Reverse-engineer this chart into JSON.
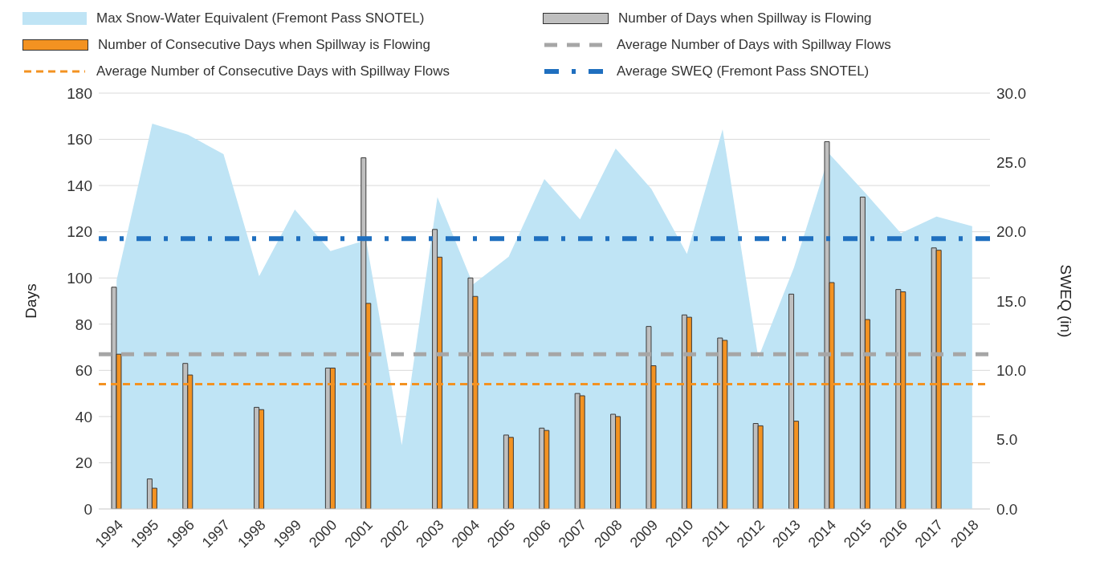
{
  "chart_data": {
    "type": "bar",
    "ylabel": "Days",
    "y2label": "SWEQ (in)",
    "categories": [
      "1994",
      "1995",
      "1996",
      "1997",
      "1998",
      "1999",
      "2000",
      "2001",
      "2002",
      "2003",
      "2004",
      "2005",
      "2006",
      "2007",
      "2008",
      "2009",
      "2010",
      "2011",
      "2012",
      "2013",
      "2014",
      "2015",
      "2016",
      "2017",
      "2018"
    ],
    "series": [
      {
        "name": "Max Snow-Water Equivalent (Fremont Pass SNOTEL)",
        "type": "area",
        "axis": "y2",
        "color": "#bfe4f5",
        "values": [
          16.5,
          27.8,
          27.0,
          25.6,
          16.8,
          21.6,
          18.6,
          19.4,
          4.6,
          22.5,
          16.2,
          18.2,
          23.8,
          20.9,
          26.0,
          23.1,
          18.4,
          27.4,
          10.9,
          17.4,
          25.6,
          22.8,
          19.9,
          21.1,
          20.4
        ]
      },
      {
        "name": "Number of Days when Spillway is Flowing",
        "color": "#bfbfbf",
        "values": [
          96,
          13,
          63,
          null,
          44,
          null,
          61,
          152,
          null,
          121,
          100,
          32,
          35,
          50,
          41,
          79,
          84,
          74,
          37,
          93,
          159,
          135,
          95,
          113,
          null
        ]
      },
      {
        "name": "Number of Consecutive Days when Spillway is Flowing",
        "color": "#f39221",
        "values": [
          67,
          9,
          58,
          null,
          43,
          null,
          61,
          89,
          null,
          109,
          92,
          31,
          34,
          49,
          40,
          62,
          83,
          73,
          36,
          38,
          98,
          82,
          94,
          112,
          null
        ]
      }
    ],
    "ref_lines": [
      {
        "axis": "y",
        "value": 67,
        "label": "Average Number of Days with Spillway Flows",
        "color": "#a6a6a6",
        "line_style": "dashed"
      },
      {
        "axis": "y",
        "value": 54,
        "label": "Average Number of Consecutive Days with Spillway Flows",
        "color": "#f39221",
        "line_style": "dashed"
      },
      {
        "axis": "y2",
        "value": 19.5,
        "label": "Average SWEQ (Fremont Pass SNOTEL)",
        "color": "#1f6fbf",
        "line_style": "dashdot"
      }
    ],
    "ylim": [
      0,
      180
    ],
    "yticks": [
      0,
      20,
      40,
      60,
      80,
      100,
      120,
      140,
      160,
      180
    ],
    "y2lim": [
      0,
      30
    ],
    "y2ticks": [
      {
        "value": 0,
        "label": "0.0"
      },
      {
        "value": 5,
        "label": "5.0"
      },
      {
        "value": 10,
        "label": "10.0"
      },
      {
        "value": 15,
        "label": "15.0"
      },
      {
        "value": 20,
        "label": "20.0"
      },
      {
        "value": 25,
        "label": "25.0"
      },
      {
        "value": 30,
        "label": "30.0"
      }
    ],
    "grid": "y",
    "legend": "top"
  }
}
